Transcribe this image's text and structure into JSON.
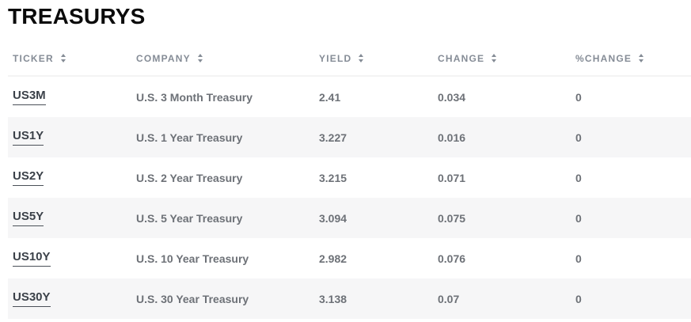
{
  "page": {
    "title": "TREASURYS"
  },
  "colors": {
    "title": "#0b0b0b",
    "header_gray": "#858c96",
    "text_gray": "#6d7177",
    "ticker_dark": "#3b4149",
    "stripe": "#f6f6f7"
  },
  "icons": {
    "sort": "sort-arrows-up-down"
  },
  "table": {
    "columns": [
      {
        "key": "ticker",
        "label": "TICKER"
      },
      {
        "key": "company",
        "label": "COMPANY"
      },
      {
        "key": "yield",
        "label": "YIELD"
      },
      {
        "key": "change",
        "label": "CHANGE"
      },
      {
        "key": "pct_change",
        "label": "%CHANGE"
      }
    ],
    "rows": [
      {
        "ticker": "US3M",
        "company": "U.S. 3 Month Treasury",
        "yield": "2.41",
        "change": "0.034",
        "pct_change": "0"
      },
      {
        "ticker": "US1Y",
        "company": "U.S. 1 Year Treasury",
        "yield": "3.227",
        "change": "0.016",
        "pct_change": "0"
      },
      {
        "ticker": "US2Y",
        "company": "U.S. 2 Year Treasury",
        "yield": "3.215",
        "change": "0.071",
        "pct_change": "0"
      },
      {
        "ticker": "US5Y",
        "company": "U.S. 5 Year Treasury",
        "yield": "3.094",
        "change": "0.075",
        "pct_change": "0"
      },
      {
        "ticker": "US10Y",
        "company": "U.S. 10 Year Treasury",
        "yield": "2.982",
        "change": "0.076",
        "pct_change": "0"
      },
      {
        "ticker": "US30Y",
        "company": "U.S. 30 Year Treasury",
        "yield": "3.138",
        "change": "0.07",
        "pct_change": "0"
      }
    ]
  }
}
